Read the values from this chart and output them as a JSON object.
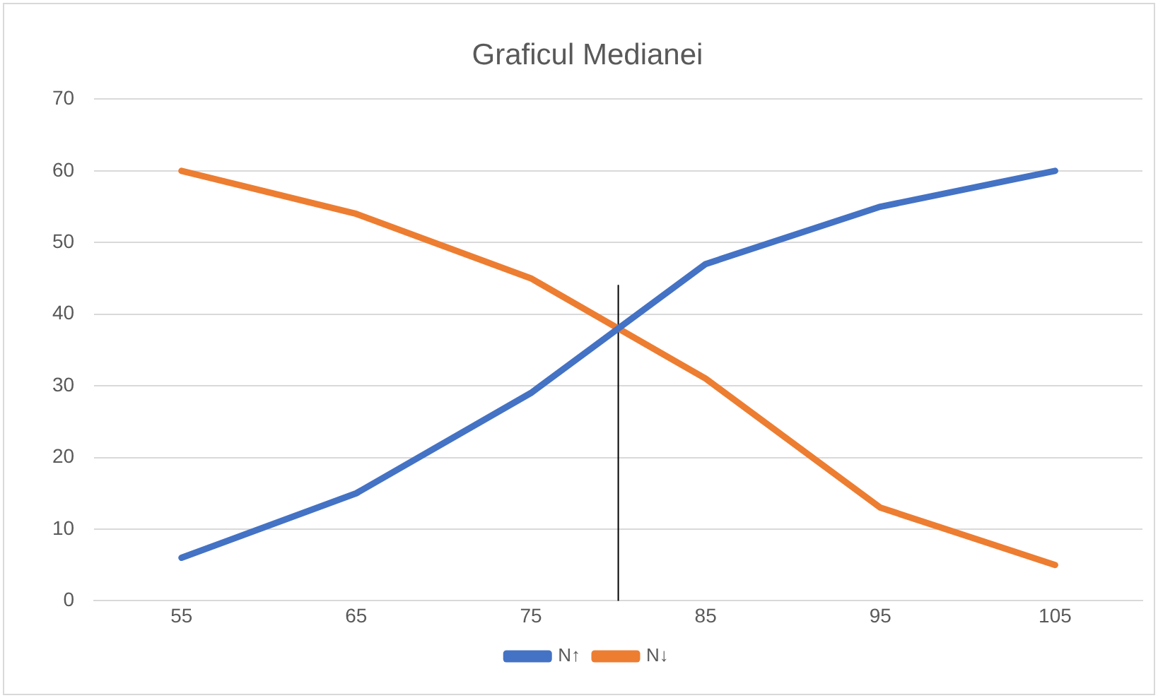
{
  "chart_data": {
    "type": "line",
    "title": "Graficul Medianei",
    "x": [
      55,
      65,
      75,
      85,
      95,
      105
    ],
    "xlim": [
      50,
      110
    ],
    "xticks": [
      55,
      65,
      75,
      85,
      95,
      105
    ],
    "ylim": [
      0,
      70
    ],
    "yticks": [
      0,
      10,
      20,
      30,
      40,
      50,
      60,
      70
    ],
    "series": [
      {
        "name": "N↑",
        "color": "#4472c4",
        "values": [
          6,
          15,
          29,
          47,
          55,
          60
        ]
      },
      {
        "name": "N↓",
        "color": "#ed7d31",
        "values": [
          60,
          54,
          45,
          31,
          13,
          5
        ]
      },
      {
        "color": "#000000",
        "x": [
          80,
          80
        ],
        "values": [
          0,
          44
        ]
      }
    ],
    "grid": "y",
    "legend": "bottom",
    "marker": "none"
  }
}
